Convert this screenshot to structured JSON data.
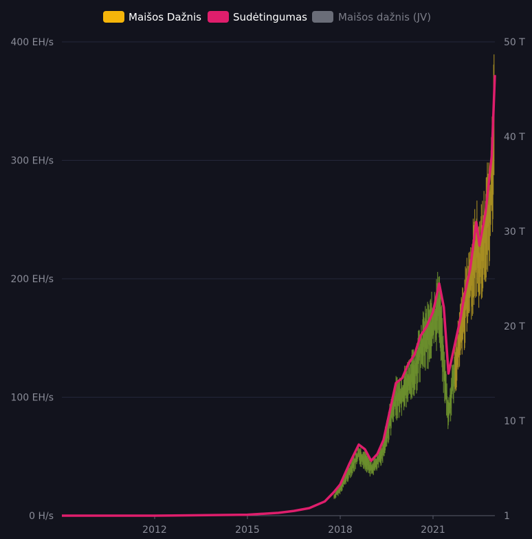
{
  "colors": {
    "background": "#12131d",
    "grid": "#24273a",
    "axis_text": "#8b8d99",
    "hashrate": "#f5b50a",
    "hashrate_low": "#6b8f2e",
    "difficulty": "#df1e6c",
    "hashrate_ma": "#6a6d78",
    "legend_text": "#ffffff",
    "legend_text_disabled": "#7b7d88"
  },
  "legend": [
    {
      "label": "Maišos Dažnis",
      "color": "#f5b50a",
      "enabled": true
    },
    {
      "label": "Sudėtingumas",
      "color": "#df1e6c",
      "enabled": true
    },
    {
      "label": "Maišos dažnis (JV)",
      "color": "#6a6d78",
      "enabled": false
    }
  ],
  "chart_data": {
    "type": "line",
    "x_ticks": [
      {
        "year": 2012,
        "label": "2012"
      },
      {
        "year": 2015,
        "label": "2015"
      },
      {
        "year": 2018,
        "label": "2018"
      },
      {
        "year": 2021,
        "label": "2021"
      }
    ],
    "x_range": [
      2009.0,
      2023.0
    ],
    "y_left": {
      "ticks": [
        "0 H/s",
        "100 EH/s",
        "200 EH/s",
        "300 EH/s",
        "400 EH/s"
      ],
      "tick_values": [
        0,
        100,
        200,
        300,
        400
      ],
      "range": [
        0,
        400
      ],
      "unit": "EH/s"
    },
    "y_right": {
      "ticks": [
        "1",
        "10 T",
        "20 T",
        "30 T",
        "40 T",
        "50 T"
      ],
      "tick_values": [
        1,
        10,
        20,
        30,
        40,
        50
      ],
      "range": [
        0,
        50
      ],
      "unit": "T"
    },
    "series": [
      {
        "name": "Sudėtingumas",
        "axis": "right",
        "x": [
          2009.0,
          2012.0,
          2015.0,
          2016.0,
          2016.5,
          2017.0,
          2017.5,
          2017.8,
          2018.0,
          2018.3,
          2018.6,
          2018.8,
          2019.0,
          2019.2,
          2019.4,
          2019.6,
          2019.8,
          2020.0,
          2020.2,
          2020.4,
          2020.6,
          2020.8,
          2021.0,
          2021.2,
          2021.35,
          2021.5,
          2021.7,
          2021.9,
          2022.0,
          2022.2,
          2022.4,
          2022.5,
          2022.7,
          2022.9,
          2023.0
        ],
        "y": [
          0,
          0,
          0.1,
          0.3,
          0.5,
          0.8,
          1.5,
          2.5,
          3.3,
          5.5,
          7.5,
          7.0,
          5.8,
          6.5,
          8.0,
          11.0,
          14.0,
          14.5,
          16.0,
          17.0,
          19.0,
          20.0,
          21.5,
          24.5,
          22.0,
          15.0,
          18.0,
          21.0,
          23.0,
          26.0,
          31.0,
          28.5,
          32.0,
          38.0,
          46.5
        ]
      },
      {
        "name": "Maišos Dažnis",
        "axis": "left",
        "x": [
          2009.0,
          2012.0,
          2015.0,
          2016.0,
          2016.5,
          2017.0,
          2017.5,
          2017.8,
          2018.0,
          2018.3,
          2018.6,
          2018.8,
          2019.0,
          2019.2,
          2019.4,
          2019.6,
          2019.8,
          2020.0,
          2020.2,
          2020.4,
          2020.6,
          2020.8,
          2021.0,
          2021.2,
          2021.35,
          2021.5,
          2021.7,
          2021.9,
          2022.0,
          2022.2,
          2022.4,
          2022.5,
          2022.7,
          2022.9,
          2023.0
        ],
        "y": [
          0,
          0,
          0.5,
          1.5,
          3,
          5,
          10,
          17,
          24,
          40,
          55,
          50,
          42,
          48,
          60,
          85,
          105,
          110,
          120,
          128,
          150,
          160,
          170,
          190,
          130,
          90,
          130,
          165,
          180,
          210,
          240,
          225,
          255,
          290,
          370
        ]
      }
    ]
  }
}
